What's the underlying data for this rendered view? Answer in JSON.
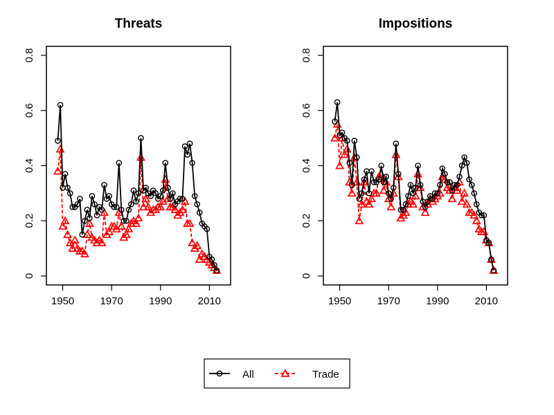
{
  "colors": {
    "all": "#000000",
    "trade": "#ff0000"
  },
  "legend": {
    "placement": "bottom-center",
    "entries": [
      {
        "label": "All",
        "series": "all",
        "marker": "circle",
        "line": "solid"
      },
      {
        "label": "Trade",
        "series": "trade",
        "marker": "triangle",
        "line": "dashed"
      }
    ]
  },
  "chart_data": [
    {
      "type": "line",
      "title": "Threats",
      "xlim": [
        1947,
        2015
      ],
      "ylim": [
        0,
        0.8
      ],
      "xticks": [
        1950,
        1970,
        1990,
        2010
      ],
      "yticks": [
        0,
        0.2,
        0.4,
        0.6,
        0.8
      ],
      "yticklabels": [
        "0",
        "0.2",
        "0.4",
        "0.6",
        "0.8"
      ],
      "grid": false,
      "x": [
        1948,
        1949,
        1950,
        1951,
        1952,
        1953,
        1954,
        1955,
        1956,
        1957,
        1958,
        1959,
        1960,
        1961,
        1962,
        1963,
        1964,
        1965,
        1966,
        1967,
        1968,
        1969,
        1970,
        1971,
        1972,
        1973,
        1974,
        1975,
        1976,
        1977,
        1978,
        1979,
        1980,
        1981,
        1982,
        1983,
        1984,
        1985,
        1986,
        1987,
        1988,
        1989,
        1990,
        1991,
        1992,
        1993,
        1994,
        1995,
        1996,
        1997,
        1998,
        1999,
        2000,
        2001,
        2002,
        2003,
        2004,
        2005,
        2006,
        2007,
        2008,
        2009,
        2010,
        2011,
        2012,
        2013
      ],
      "series": [
        {
          "name": "All",
          "key": "all",
          "values": [
            0.49,
            0.62,
            0.32,
            0.37,
            0.32,
            0.3,
            0.25,
            0.25,
            0.26,
            0.28,
            0.15,
            0.2,
            0.24,
            0.21,
            0.29,
            0.26,
            0.22,
            0.25,
            0.24,
            0.33,
            0.28,
            0.29,
            0.26,
            0.25,
            0.25,
            0.41,
            0.24,
            0.2,
            0.2,
            0.24,
            0.26,
            0.31,
            0.27,
            0.3,
            0.5,
            0.31,
            0.32,
            0.3,
            0.29,
            0.31,
            0.3,
            0.28,
            0.29,
            0.31,
            0.41,
            0.32,
            0.28,
            0.3,
            0.26,
            0.27,
            0.28,
            0.28,
            0.47,
            0.44,
            0.48,
            0.41,
            0.29,
            0.26,
            0.23,
            0.19,
            0.18,
            0.17,
            0.07,
            0.06,
            0.04,
            0.02
          ]
        },
        {
          "name": "Trade",
          "key": "trade",
          "values": [
            0.38,
            0.46,
            0.18,
            0.2,
            0.15,
            0.12,
            0.1,
            0.13,
            0.1,
            0.09,
            0.09,
            0.08,
            0.15,
            0.19,
            0.14,
            0.13,
            0.12,
            0.13,
            0.12,
            0.23,
            0.15,
            0.16,
            0.18,
            0.18,
            0.17,
            0.23,
            0.18,
            0.14,
            0.15,
            0.17,
            0.19,
            0.2,
            0.19,
            0.21,
            0.43,
            0.25,
            0.28,
            0.25,
            0.23,
            0.24,
            0.24,
            0.25,
            0.25,
            0.27,
            0.35,
            0.28,
            0.25,
            0.25,
            0.24,
            0.22,
            0.23,
            0.24,
            0.27,
            0.19,
            0.19,
            0.12,
            0.1,
            0.11,
            0.06,
            0.08,
            0.07,
            0.06,
            0.05,
            0.04,
            0.03,
            0.02
          ]
        }
      ]
    },
    {
      "type": "line",
      "title": "Impositions",
      "xlim": [
        1947,
        2015
      ],
      "ylim": [
        0,
        0.8
      ],
      "xticks": [
        1950,
        1970,
        1990,
        2010
      ],
      "yticks": [
        0,
        0.2,
        0.4,
        0.6,
        0.8
      ],
      "yticklabels": [
        "0",
        "0.2",
        "0.4",
        "0.6",
        "0.8"
      ],
      "grid": false,
      "x": [
        1948,
        1949,
        1950,
        1951,
        1952,
        1953,
        1954,
        1955,
        1956,
        1957,
        1958,
        1959,
        1960,
        1961,
        1962,
        1963,
        1964,
        1965,
        1966,
        1967,
        1968,
        1969,
        1970,
        1971,
        1972,
        1973,
        1974,
        1975,
        1976,
        1977,
        1978,
        1979,
        1980,
        1981,
        1982,
        1983,
        1984,
        1985,
        1986,
        1987,
        1988,
        1989,
        1990,
        1991,
        1992,
        1993,
        1994,
        1995,
        1996,
        1997,
        1998,
        1999,
        2000,
        2001,
        2002,
        2003,
        2004,
        2005,
        2006,
        2007,
        2008,
        2009,
        2010,
        2011,
        2012,
        2013
      ],
      "series": [
        {
          "name": "All",
          "key": "all",
          "values": [
            0.56,
            0.63,
            0.51,
            0.52,
            0.5,
            0.49,
            0.41,
            0.33,
            0.49,
            0.43,
            0.28,
            0.3,
            0.35,
            0.38,
            0.3,
            0.38,
            0.34,
            0.34,
            0.35,
            0.4,
            0.34,
            0.36,
            0.3,
            0.28,
            0.32,
            0.48,
            0.37,
            0.24,
            0.24,
            0.26,
            0.29,
            0.33,
            0.3,
            0.32,
            0.4,
            0.33,
            0.27,
            0.25,
            0.27,
            0.29,
            0.28,
            0.3,
            0.3,
            0.33,
            0.39,
            0.37,
            0.34,
            0.34,
            0.31,
            0.33,
            0.33,
            0.36,
            0.4,
            0.43,
            0.41,
            0.35,
            0.33,
            0.3,
            0.26,
            0.23,
            0.22,
            0.22,
            0.13,
            0.12,
            0.06,
            0.02
          ]
        },
        {
          "name": "Trade",
          "key": "trade",
          "values": [
            0.5,
            0.55,
            0.4,
            0.5,
            0.44,
            0.46,
            0.34,
            0.3,
            0.43,
            0.34,
            0.2,
            0.26,
            0.34,
            0.27,
            0.26,
            0.28,
            0.3,
            0.3,
            0.36,
            0.37,
            0.31,
            0.34,
            0.28,
            0.25,
            0.3,
            0.44,
            0.36,
            0.21,
            0.22,
            0.23,
            0.26,
            0.27,
            0.26,
            0.29,
            0.37,
            0.32,
            0.25,
            0.23,
            0.26,
            0.28,
            0.27,
            0.28,
            0.29,
            0.3,
            0.36,
            0.35,
            0.32,
            0.31,
            0.28,
            0.32,
            0.31,
            0.34,
            0.27,
            0.3,
            0.26,
            0.23,
            0.23,
            0.22,
            0.2,
            0.17,
            0.16,
            0.16,
            0.13,
            0.12,
            0.06,
            0.02
          ]
        }
      ]
    }
  ]
}
